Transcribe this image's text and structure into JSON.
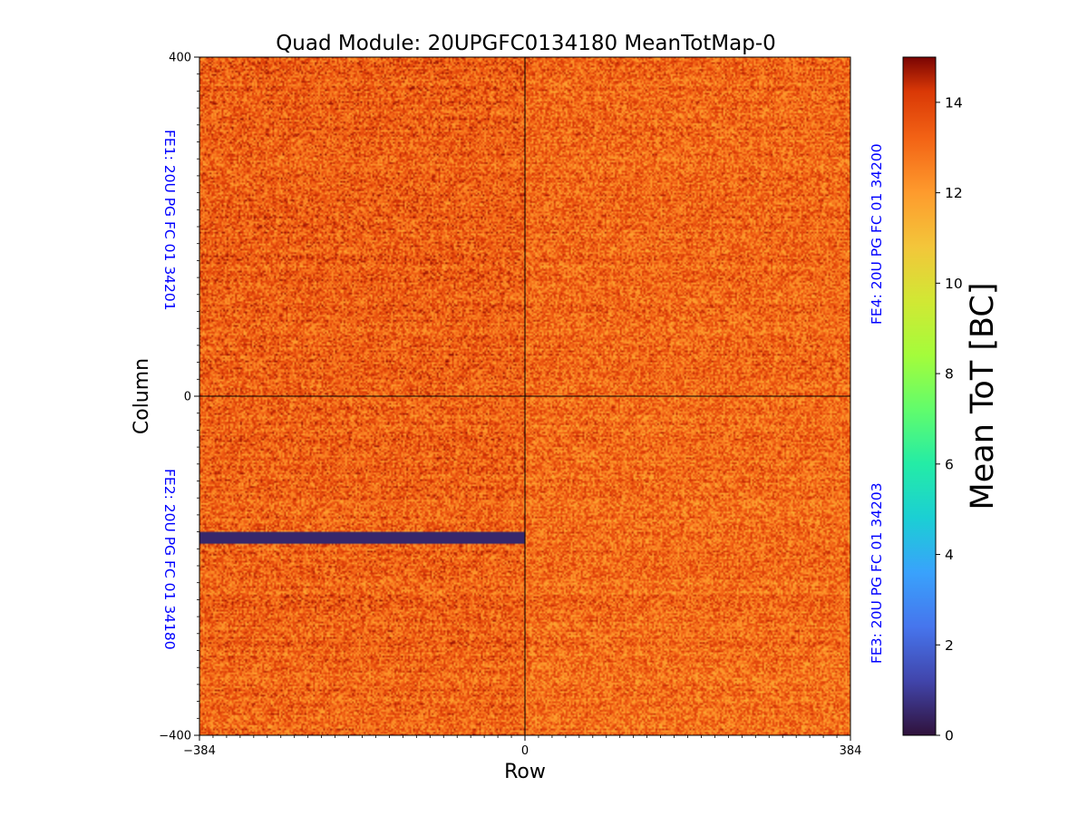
{
  "chart_data": {
    "type": "heatmap",
    "title": "Quad Module: 20UPGFC0134180 MeanTotMap-0",
    "xlabel": "Row",
    "ylabel": "Column",
    "xlim": [
      -384,
      384
    ],
    "ylim": [
      -400,
      400
    ],
    "x_ticks": [
      {
        "value": -384,
        "label": "−384"
      },
      {
        "value": 0,
        "label": "0"
      },
      {
        "value": 384,
        "label": "384"
      }
    ],
    "y_ticks": [
      {
        "value": 400,
        "label": "400"
      },
      {
        "value": 0,
        "label": "0"
      },
      {
        "value": -400,
        "label": "−400"
      }
    ],
    "colorbar": {
      "label": "Mean ToT [BC]",
      "colormap": "turbo",
      "vmin": 0,
      "vmax": 15,
      "ticks": [
        {
          "value": 0,
          "label": "0"
        },
        {
          "value": 2,
          "label": "2"
        },
        {
          "value": 4,
          "label": "4"
        },
        {
          "value": 6,
          "label": "6"
        },
        {
          "value": 8,
          "label": "8"
        },
        {
          "value": 10,
          "label": "10"
        },
        {
          "value": 12,
          "label": "12"
        },
        {
          "value": 14,
          "label": "14"
        }
      ]
    },
    "front_ends": [
      {
        "name": "FE1",
        "label": "FE1: 20U PG FC 01 34201",
        "x_range": [
          -384,
          0
        ],
        "y_range": [
          0,
          400
        ],
        "mean_tot": 13.3,
        "side": "left"
      },
      {
        "name": "FE2",
        "label": "FE2: 20U PG FC 01 34180",
        "x_range": [
          -384,
          0
        ],
        "y_range": [
          -400,
          0
        ],
        "mean_tot": 13.2,
        "side": "left"
      },
      {
        "name": "FE3",
        "label": "FE3: 20U PG FC 01 34203",
        "x_range": [
          0,
          384
        ],
        "y_range": [
          -400,
          0
        ],
        "mean_tot": 13.0,
        "side": "right"
      },
      {
        "name": "FE4",
        "label": "FE4: 20U PG FC 01 34200",
        "x_range": [
          0,
          384
        ],
        "y_range": [
          0,
          400
        ],
        "mean_tot": 13.1,
        "side": "right"
      }
    ],
    "dead_region": {
      "x_range": [
        -384,
        0
      ],
      "y_range": [
        -173,
        -160
      ],
      "mean_tot": 0.5
    },
    "fe_label_color": "#0000ff"
  }
}
